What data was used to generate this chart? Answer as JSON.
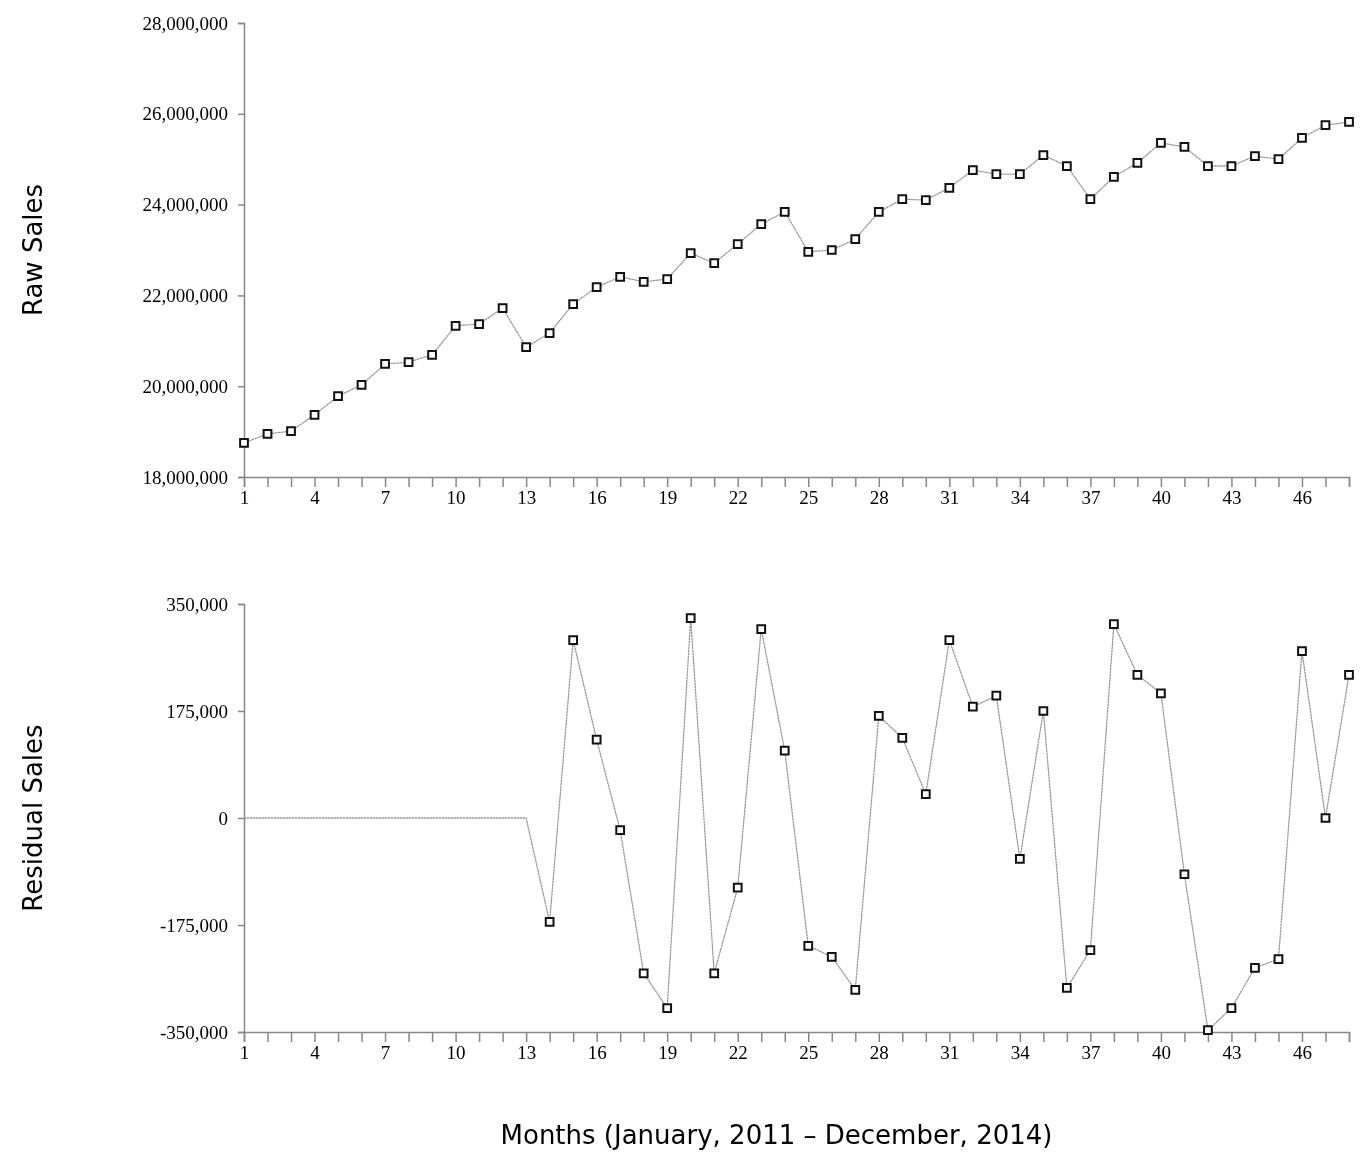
{
  "chart_data": [
    {
      "type": "line",
      "ylabel": "Raw Sales",
      "xlim": [
        1,
        48
      ],
      "xticks": [
        1,
        {
          "value": 2,
          "label": null
        },
        {
          "value": 3,
          "label": null
        },
        4,
        {
          "value": 5,
          "label": null
        },
        {
          "value": 6,
          "label": null
        },
        7,
        {
          "value": 8,
          "label": null
        },
        {
          "value": 9,
          "label": null
        },
        10,
        {
          "value": 11,
          "label": null
        },
        {
          "value": 12,
          "label": null
        },
        13,
        {
          "value": 14,
          "label": null
        },
        {
          "value": 15,
          "label": null
        },
        16,
        {
          "value": 17,
          "label": null
        },
        {
          "value": 18,
          "label": null
        },
        19,
        {
          "value": 20,
          "label": null
        },
        {
          "value": 21,
          "label": null
        },
        22,
        {
          "value": 23,
          "label": null
        },
        {
          "value": 24,
          "label": null
        },
        25,
        {
          "value": 26,
          "label": null
        },
        {
          "value": 27,
          "label": null
        },
        28,
        {
          "value": 29,
          "label": null
        },
        {
          "value": 30,
          "label": null
        },
        31,
        {
          "value": 32,
          "label": null
        },
        {
          "value": 33,
          "label": null
        },
        34,
        {
          "value": 35,
          "label": null
        },
        {
          "value": 36,
          "label": null
        },
        37,
        {
          "value": 38,
          "label": null
        },
        {
          "value": 39,
          "label": null
        },
        40,
        {
          "value": 41,
          "label": null
        },
        {
          "value": 42,
          "label": null
        },
        43,
        {
          "value": 44,
          "label": null
        },
        {
          "value": 45,
          "label": null
        },
        46,
        {
          "value": 47,
          "label": null
        },
        {
          "value": 48,
          "label": null
        }
      ],
      "ylim": [
        18000000,
        28000000
      ],
      "yticks": [
        {
          "value": 18000000,
          "label": "18,000,000"
        },
        {
          "value": 20000000,
          "label": "20,000,000"
        },
        {
          "value": 22000000,
          "label": "22,000,000"
        },
        {
          "value": 24000000,
          "label": "24,000,000"
        },
        {
          "value": 26000000,
          "label": "26,000,000"
        },
        {
          "value": 28000000,
          "label": "28,000,000"
        }
      ],
      "grid": false,
      "marker": "square",
      "line_style": "dotted",
      "series": [
        {
          "color": "#999999",
          "x": [
            1,
            2,
            3,
            4,
            5,
            6,
            7,
            8,
            9,
            10,
            11,
            12,
            13,
            14,
            15,
            16,
            17,
            18,
            19,
            20,
            21,
            22,
            23,
            24,
            25,
            26,
            27,
            28,
            29,
            30,
            31,
            32,
            33,
            34,
            35,
            36,
            37,
            38,
            39,
            40,
            41,
            42,
            43,
            44,
            45,
            46,
            47,
            48
          ],
          "values": [
            18750000,
            18950000,
            19010000,
            19370000,
            19780000,
            20030000,
            20490000,
            20530000,
            20690000,
            21330000,
            21370000,
            21720000,
            20860000,
            21170000,
            21810000,
            22180000,
            22410000,
            22300000,
            22360000,
            22930000,
            22710000,
            23130000,
            23570000,
            23840000,
            22960000,
            23000000,
            23240000,
            23840000,
            24120000,
            24100000,
            24370000,
            24760000,
            24670000,
            24670000,
            25090000,
            24850000,
            24120000,
            24610000,
            24920000,
            25360000,
            25270000,
            24850000,
            24850000,
            25070000,
            25000000,
            25470000,
            25750000,
            25820000
          ]
        }
      ]
    },
    {
      "type": "line",
      "ylabel": "Residual Sales",
      "xlabel": "Months (January, 2011 – December, 2014)",
      "xlim": [
        1,
        48
      ],
      "xticks": [
        1,
        {
          "value": 2,
          "label": null
        },
        {
          "value": 3,
          "label": null
        },
        4,
        {
          "value": 5,
          "label": null
        },
        {
          "value": 6,
          "label": null
        },
        7,
        {
          "value": 8,
          "label": null
        },
        {
          "value": 9,
          "label": null
        },
        10,
        {
          "value": 11,
          "label": null
        },
        {
          "value": 12,
          "label": null
        },
        13,
        {
          "value": 14,
          "label": null
        },
        {
          "value": 15,
          "label": null
        },
        16,
        {
          "value": 17,
          "label": null
        },
        {
          "value": 18,
          "label": null
        },
        19,
        {
          "value": 20,
          "label": null
        },
        {
          "value": 21,
          "label": null
        },
        22,
        {
          "value": 23,
          "label": null
        },
        {
          "value": 24,
          "label": null
        },
        25,
        {
          "value": 26,
          "label": null
        },
        {
          "value": 27,
          "label": null
        },
        28,
        {
          "value": 29,
          "label": null
        },
        {
          "value": 30,
          "label": null
        },
        31,
        {
          "value": 32,
          "label": null
        },
        {
          "value": 33,
          "label": null
        },
        34,
        {
          "value": 35,
          "label": null
        },
        {
          "value": 36,
          "label": null
        },
        37,
        {
          "value": 38,
          "label": null
        },
        {
          "value": 39,
          "label": null
        },
        40,
        {
          "value": 41,
          "label": null
        },
        {
          "value": 42,
          "label": null
        },
        43,
        {
          "value": 44,
          "label": null
        },
        {
          "value": 45,
          "label": null
        },
        46,
        {
          "value": 47,
          "label": null
        },
        {
          "value": 48,
          "label": null
        }
      ],
      "ylim": [
        -350000,
        350000
      ],
      "yticks": [
        {
          "value": -350000,
          "label": "-350,000"
        },
        {
          "value": -175000,
          "label": "-175,000"
        },
        0,
        {
          "value": 175000,
          "label": "175,000"
        },
        {
          "value": 350000,
          "label": "350,000"
        }
      ],
      "grid": false,
      "marker": "square",
      "line_style": "dotted",
      "series": [
        {
          "color": "#999999",
          "marker": "none",
          "x": [
            1,
            2,
            3,
            4,
            5,
            6,
            7,
            8,
            9,
            10,
            11,
            12,
            13,
            14
          ],
          "values": [
            0,
            0,
            0,
            0,
            0,
            0,
            0,
            0,
            0,
            0,
            0,
            0,
            0,
            -170000
          ]
        },
        {
          "color": "#999999",
          "x": [
            14,
            15,
            16,
            17,
            18,
            19,
            20,
            21,
            22,
            23,
            24,
            25,
            26,
            27,
            28,
            29,
            30,
            31,
            32,
            33,
            34,
            35,
            36,
            37,
            38,
            39,
            40,
            41,
            42,
            43,
            44,
            45,
            46,
            47,
            48
          ],
          "values": [
            -170000,
            291000,
            128000,
            -20000,
            -254000,
            -311000,
            327000,
            -254000,
            -114000,
            309000,
            110000,
            -209000,
            -227000,
            -281000,
            167000,
            131000,
            39000,
            291000,
            182000,
            200000,
            -67000,
            175000,
            -278000,
            -216000,
            317000,
            234000,
            204000,
            -92000,
            -347000,
            -311000,
            -245000,
            -231000,
            273000,
            0,
            234000
          ]
        }
      ]
    }
  ]
}
